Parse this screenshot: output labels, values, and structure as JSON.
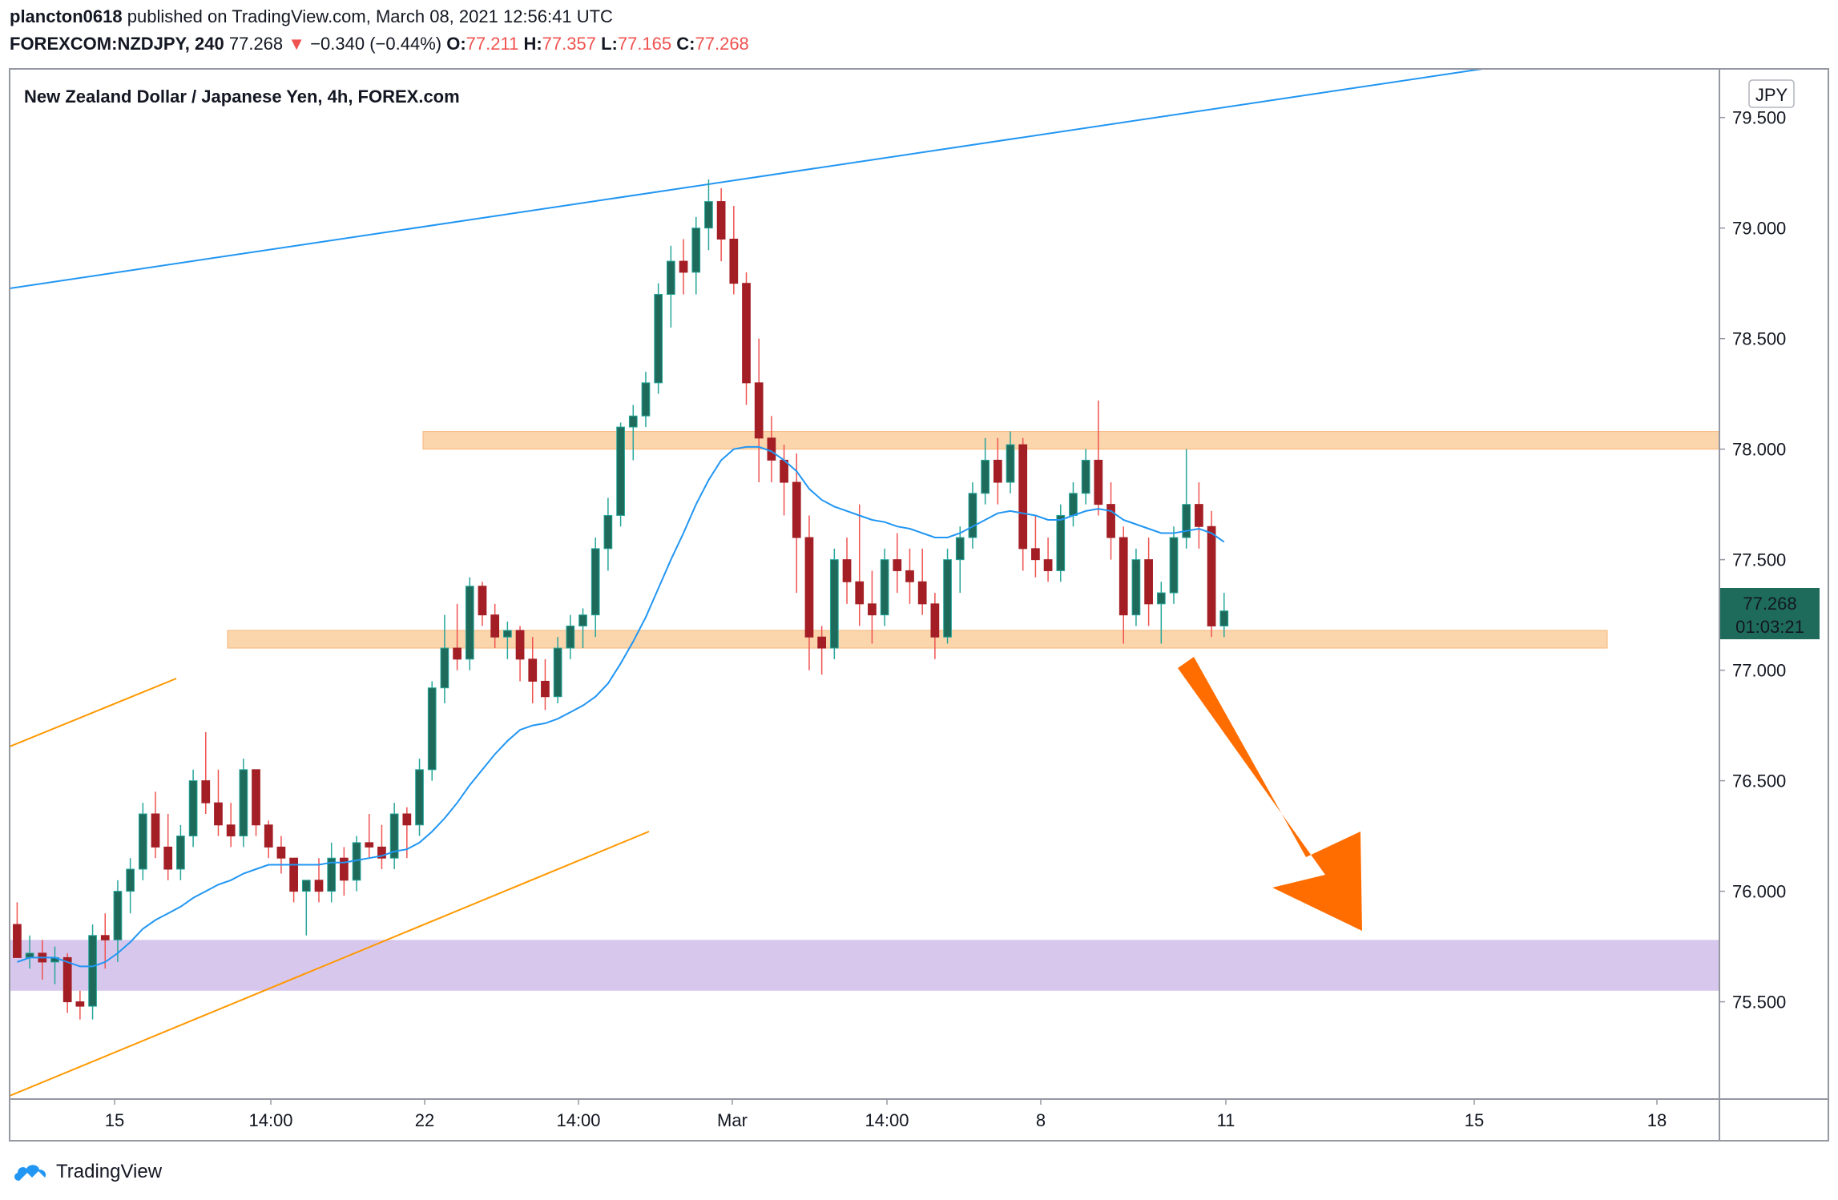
{
  "header": {
    "author": "plancton0618",
    "published_text": "published on TradingView.com, March 08, 2021 12:56:41 UTC",
    "symbol": "FOREXCOM:NZDJPY, 240",
    "last": "77.268",
    "change_arrow": "▼",
    "change": "−0.340 (−0.44%)",
    "o_label": "O:",
    "o_value": "77.211",
    "h_label": "H:",
    "h_value": "77.357",
    "l_label": "L:",
    "l_value": "77.165",
    "c_label": "C:",
    "c_value": "77.268"
  },
  "footer": {
    "brand": "TradingView",
    "icon": "tradingview-cloud-icon"
  },
  "colors": {
    "up": "#26a69a",
    "up_body": "#1e6b5c",
    "down_body": "#a31f25",
    "down_wick": "#ef5350",
    "ma": "#2196f3",
    "trendline": "#2196f3",
    "channel": "#ff9800",
    "resistance_zone": "#fbd5ac",
    "support_zone": "#fbd5ac",
    "target_zone": "#d8c7ec",
    "arrow": "#ff6d00",
    "price_label_bg": "#1e6b5c"
  },
  "chart_data": {
    "type": "candlestick",
    "title": "New Zealand Dollar / Japanese Yen, 4h, FOREX.com",
    "currency_label": "JPY",
    "y_ticks": [
      "79.500",
      "79.000",
      "78.500",
      "78.000",
      "77.500",
      "77.000",
      "76.500",
      "76.000",
      "75.500"
    ],
    "x_ticks": [
      "15",
      "14:00",
      "22",
      "14:00",
      "Mar",
      "14:00",
      "8",
      "11",
      "15",
      "18"
    ],
    "last_price_label": "77.268",
    "countdown_label": "01:03:21",
    "ylim": [
      75.06,
      79.72
    ],
    "bars_visible": 136,
    "ohlc": [
      [
        75.85,
        75.95,
        75.7,
        75.7
      ],
      [
        75.7,
        75.8,
        75.65,
        75.72
      ],
      [
        75.72,
        75.78,
        75.6,
        75.68
      ],
      [
        75.68,
        75.75,
        75.58,
        75.7
      ],
      [
        75.7,
        75.72,
        75.45,
        75.5
      ],
      [
        75.5,
        75.55,
        75.42,
        75.48
      ],
      [
        75.48,
        75.85,
        75.42,
        75.8
      ],
      [
        75.8,
        75.9,
        75.65,
        75.78
      ],
      [
        75.78,
        76.05,
        75.68,
        76.0
      ],
      [
        76.0,
        76.15,
        75.9,
        76.1
      ],
      [
        76.1,
        76.4,
        76.05,
        76.35
      ],
      [
        76.35,
        76.45,
        76.15,
        76.2
      ],
      [
        76.2,
        76.35,
        76.05,
        76.1
      ],
      [
        76.1,
        76.3,
        76.05,
        76.25
      ],
      [
        76.25,
        76.55,
        76.2,
        76.5
      ],
      [
        76.5,
        76.72,
        76.35,
        76.4
      ],
      [
        76.4,
        76.55,
        76.25,
        76.3
      ],
      [
        76.3,
        76.4,
        76.2,
        76.25
      ],
      [
        76.25,
        76.6,
        76.2,
        76.55
      ],
      [
        76.55,
        76.55,
        76.25,
        76.3
      ],
      [
        76.3,
        76.32,
        76.15,
        76.2
      ],
      [
        76.2,
        76.25,
        76.08,
        76.15
      ],
      [
        76.15,
        76.15,
        75.95,
        76.0
      ],
      [
        76.0,
        76.05,
        75.8,
        76.05
      ],
      [
        76.05,
        76.15,
        75.95,
        76.0
      ],
      [
        76.0,
        76.22,
        75.95,
        76.15
      ],
      [
        76.15,
        76.2,
        75.98,
        76.05
      ],
      [
        76.05,
        76.25,
        76.0,
        76.22
      ],
      [
        76.22,
        76.35,
        76.15,
        76.2
      ],
      [
        76.2,
        76.3,
        76.1,
        76.15
      ],
      [
        76.15,
        76.4,
        76.1,
        76.35
      ],
      [
        76.35,
        76.38,
        76.15,
        76.3
      ],
      [
        76.3,
        76.6,
        76.25,
        76.55
      ],
      [
        76.55,
        76.95,
        76.5,
        76.92
      ],
      [
        76.92,
        77.25,
        76.85,
        77.1
      ],
      [
        77.1,
        77.3,
        77.0,
        77.05
      ],
      [
        77.05,
        77.42,
        77.0,
        77.38
      ],
      [
        77.38,
        77.4,
        77.2,
        77.25
      ],
      [
        77.25,
        77.3,
        77.1,
        77.15
      ],
      [
        77.15,
        77.22,
        77.05,
        77.18
      ],
      [
        77.18,
        77.2,
        76.95,
        77.05
      ],
      [
        77.05,
        77.15,
        76.85,
        76.95
      ],
      [
        76.95,
        77.05,
        76.82,
        76.88
      ],
      [
        76.88,
        77.15,
        76.85,
        77.1
      ],
      [
        77.1,
        77.25,
        77.05,
        77.2
      ],
      [
        77.2,
        77.28,
        77.1,
        77.25
      ],
      [
        77.25,
        77.6,
        77.15,
        77.55
      ],
      [
        77.55,
        77.78,
        77.45,
        77.7
      ],
      [
        77.7,
        78.12,
        77.65,
        78.1
      ],
      [
        78.1,
        78.2,
        77.95,
        78.15
      ],
      [
        78.15,
        78.35,
        78.1,
        78.3
      ],
      [
        78.3,
        78.75,
        78.25,
        78.7
      ],
      [
        78.7,
        78.92,
        78.55,
        78.85
      ],
      [
        78.85,
        78.95,
        78.7,
        78.8
      ],
      [
        78.8,
        79.05,
        78.7,
        79.0
      ],
      [
        79.0,
        79.22,
        78.9,
        79.12
      ],
      [
        79.12,
        79.18,
        78.85,
        78.95
      ],
      [
        78.95,
        79.1,
        78.7,
        78.75
      ],
      [
        78.75,
        78.8,
        78.2,
        78.3
      ],
      [
        78.3,
        78.5,
        77.85,
        78.05
      ],
      [
        78.05,
        78.15,
        77.85,
        77.95
      ],
      [
        77.95,
        78.02,
        77.7,
        77.85
      ],
      [
        77.85,
        77.98,
        77.35,
        77.6
      ],
      [
        77.6,
        77.7,
        77.0,
        77.15
      ],
      [
        77.15,
        77.2,
        76.98,
        77.1
      ],
      [
        77.1,
        77.55,
        77.05,
        77.5
      ],
      [
        77.5,
        77.6,
        77.3,
        77.4
      ],
      [
        77.4,
        77.75,
        77.2,
        77.3
      ],
      [
        77.3,
        77.45,
        77.12,
        77.25
      ],
      [
        77.25,
        77.55,
        77.2,
        77.5
      ],
      [
        77.5,
        77.62,
        77.35,
        77.45
      ],
      [
        77.45,
        77.55,
        77.3,
        77.4
      ],
      [
        77.4,
        77.55,
        77.25,
        77.3
      ],
      [
        77.3,
        77.35,
        77.05,
        77.15
      ],
      [
        77.15,
        77.55,
        77.12,
        77.5
      ],
      [
        77.5,
        77.65,
        77.35,
        77.6
      ],
      [
        77.6,
        77.85,
        77.55,
        77.8
      ],
      [
        77.8,
        78.05,
        77.75,
        77.95
      ],
      [
        77.95,
        78.05,
        77.75,
        77.85
      ],
      [
        77.85,
        78.08,
        77.8,
        78.02
      ],
      [
        78.02,
        78.05,
        77.45,
        77.55
      ],
      [
        77.55,
        77.7,
        77.42,
        77.5
      ],
      [
        77.5,
        77.6,
        77.4,
        77.45
      ],
      [
        77.45,
        77.75,
        77.4,
        77.7
      ],
      [
        77.7,
        77.85,
        77.65,
        77.8
      ],
      [
        77.8,
        78.0,
        77.75,
        77.95
      ],
      [
        77.95,
        78.22,
        77.7,
        77.75
      ],
      [
        77.75,
        77.85,
        77.5,
        77.6
      ],
      [
        77.6,
        77.65,
        77.12,
        77.25
      ],
      [
        77.25,
        77.55,
        77.2,
        77.5
      ],
      [
        77.5,
        77.6,
        77.2,
        77.3
      ],
      [
        77.3,
        77.4,
        77.12,
        77.35
      ],
      [
        77.35,
        77.65,
        77.3,
        77.6
      ],
      [
        77.6,
        78.0,
        77.55,
        77.75
      ],
      [
        77.75,
        77.85,
        77.55,
        77.65
      ],
      [
        77.65,
        77.72,
        77.15,
        77.2
      ],
      [
        77.2,
        77.35,
        77.15,
        77.268
      ]
    ],
    "ma_values": [
      75.68,
      75.7,
      75.7,
      75.7,
      75.68,
      75.66,
      75.66,
      75.68,
      75.72,
      75.77,
      75.83,
      75.87,
      75.9,
      75.93,
      75.97,
      76.0,
      76.03,
      76.05,
      76.08,
      76.1,
      76.12,
      76.12,
      76.12,
      76.12,
      76.12,
      76.13,
      76.13,
      76.14,
      76.15,
      76.16,
      76.18,
      76.19,
      76.22,
      76.27,
      76.33,
      76.4,
      76.48,
      76.55,
      76.62,
      76.68,
      76.73,
      76.75,
      76.76,
      76.78,
      76.81,
      76.84,
      76.88,
      76.94,
      77.03,
      77.13,
      77.24,
      77.37,
      77.5,
      77.62,
      77.75,
      77.86,
      77.95,
      78.0,
      78.01,
      78.01,
      77.99,
      77.95,
      77.9,
      77.82,
      77.77,
      77.74,
      77.72,
      77.7,
      77.68,
      77.67,
      77.65,
      77.64,
      77.62,
      77.6,
      77.6,
      77.62,
      77.65,
      77.68,
      77.71,
      77.72,
      77.71,
      77.7,
      77.68,
      77.68,
      77.7,
      77.72,
      77.73,
      77.72,
      77.68,
      77.66,
      77.64,
      77.62,
      77.62,
      77.63,
      77.64,
      77.62,
      77.58
    ],
    "zones": [
      {
        "name": "resistance",
        "from": 78.0,
        "to": 78.08
      },
      {
        "name": "support",
        "from": 77.1,
        "to": 77.18
      },
      {
        "name": "target",
        "from": 75.55,
        "to": 75.78
      }
    ]
  }
}
